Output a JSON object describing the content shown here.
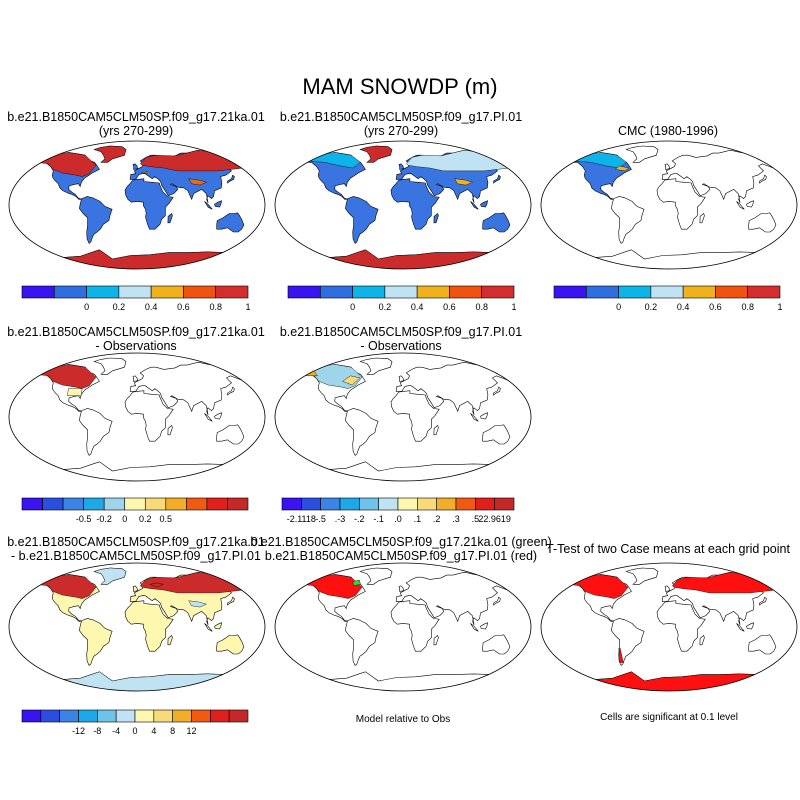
{
  "figure": {
    "title": "MAM SNOWDP (m)",
    "panels": [
      {
        "id": "p1",
        "title_line1": "b.e21.B1850CAM5CLM50SP.f09_g17.21ka.01",
        "title_line2": "(yrs 270-299)"
      },
      {
        "id": "p2",
        "title_line1": "b.e21.B1850CAM5CLM50SP.f09_g17.PI.01",
        "title_line2": "(yrs 270-299)"
      },
      {
        "id": "p3",
        "title_line1": "CMC (1980-1996)",
        "title_line2": ""
      },
      {
        "id": "p4",
        "title_line1": "b.e21.B1850CAM5CLM50SP.f09_g17.21ka.01",
        "title_line2": "- Observations"
      },
      {
        "id": "p5",
        "title_line1": "b.e21.B1850CAM5CLM50SP.f09_g17.PI.01",
        "title_line2": "- Observations"
      },
      {
        "id": "p7",
        "title_line1": "b.e21.B1850CAM5CLM50SP.f09_g17.21ka.01",
        "title_line2": "- b.e21.B1850CAM5CLM50SP.f09_g17.PI.01"
      },
      {
        "id": "p8",
        "title_line1": "b.e21.B1850CAM5CLM50SP.f09_g17.21ka.01 (green)",
        "title_line2": "b.e21.B1850CAM5CLM50SP.f09_g17.PI.01 (red)"
      },
      {
        "id": "p9",
        "title_line1": "T-Test of two Case means at each grid point",
        "title_line2": ""
      }
    ],
    "notes": {
      "model_relative": "Model relative to Obs",
      "significance": "Cells are significant at 0.1 level"
    },
    "colorbars": {
      "snow": {
        "colors": [
          "#3a14f0",
          "#2e6ee0",
          "#0db4ea",
          "#bfe3f2",
          "#f0b21c",
          "#f0520f",
          "#d42d2d"
        ],
        "labels": [
          "0",
          "0.2",
          "0.4",
          "0.6",
          "0.8",
          "1"
        ]
      },
      "diff21": {
        "colors": [
          "#3a14f0",
          "#2a4fe0",
          "#3c83e6",
          "#1fa8e8",
          "#9ed5ea",
          "#fdf7b0",
          "#f8db78",
          "#f2ae28",
          "#f05a12",
          "#e0201a",
          "#c42828"
        ],
        "labels": [
          "-0.5",
          "-0.2",
          "0",
          "0.2",
          "0.5"
        ]
      },
      "diffPI": {
        "colors": [
          "#3a14f0",
          "#2a4fe0",
          "#3c83e6",
          "#1fa8e8",
          "#6ec3ea",
          "#bfe3f2",
          "#fdf7b0",
          "#f8db78",
          "#f2ae28",
          "#f05a12",
          "#e0201a",
          "#c42828"
        ],
        "labels": [
          "-2.1118",
          "-.5",
          ".-3",
          "-.2",
          "-.1",
          ".0",
          ".1",
          ".2",
          ".3",
          ".5",
          "22.9619"
        ]
      },
      "diffCases": {
        "colors": [
          "#3a14f0",
          "#2a4fe0",
          "#3c83e6",
          "#1fa8e8",
          "#6ec3ea",
          "#bfe3f2",
          "#fdf7b0",
          "#f8db78",
          "#f2ae28",
          "#f05a12",
          "#e0201a",
          "#c42828"
        ],
        "labels": [
          "-12",
          "-8",
          "-4",
          "0",
          "4",
          "8",
          "12"
        ]
      }
    }
  }
}
